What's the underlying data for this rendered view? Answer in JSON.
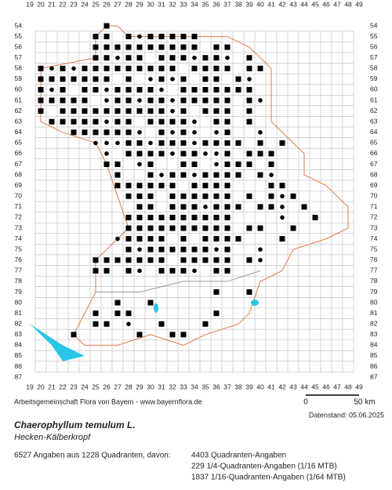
{
  "map": {
    "columns": [
      "19",
      "20",
      "21",
      "22",
      "23",
      "24",
      "25",
      "26",
      "27",
      "28",
      "29",
      "30",
      "31",
      "32",
      "33",
      "34",
      "35",
      "36",
      "37",
      "38",
      "39",
      "40",
      "41",
      "42",
      "43",
      "44",
      "45",
      "46",
      "47",
      "48",
      "49"
    ],
    "rows": [
      "54",
      "55",
      "56",
      "57",
      "58",
      "59",
      "60",
      "61",
      "62",
      "63",
      "64",
      "65",
      "66",
      "67",
      "68",
      "69",
      "70",
      "71",
      "72",
      "73",
      "74",
      "75",
      "76",
      "77",
      "78",
      "79",
      "80",
      "81",
      "82",
      "83",
      "84",
      "85",
      "86",
      "87"
    ],
    "scale": {
      "start": "0",
      "end": "50 km"
    }
  },
  "credit": "Arbeitsgemeinschaft Flora von Bayern - www.bayernflora.de",
  "date": "Datenstand: 05.06.2025",
  "title": "Chaerophyllum temulum L.",
  "subtitle": "Hecken-Kälberkropf",
  "stats": {
    "summary": "6527 Angaben aus 1228 Quadranten, davon:",
    "lines": [
      "4403 Quadranten-Angaben",
      "229 1/4-Quadranten-Angaben (1/16 MTB)",
      "1837 1/16-Quadranten-Angaben (1/64 MTB)"
    ]
  }
}
